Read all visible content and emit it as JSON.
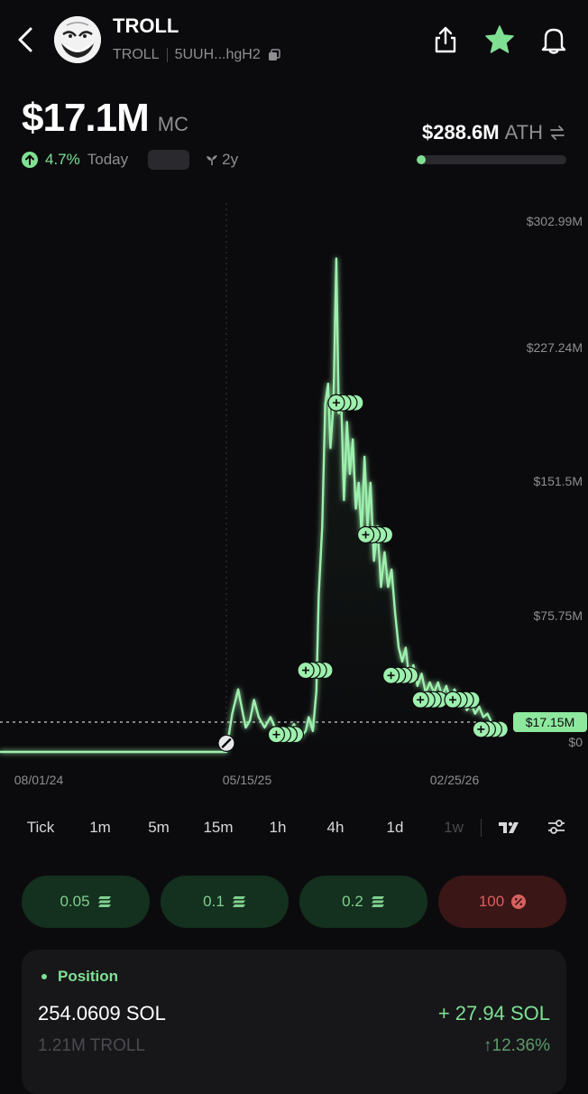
{
  "header": {
    "title": "TROLL",
    "symbol": "TROLL",
    "address": "5UUH...hgH2"
  },
  "market_cap": {
    "value": "$17.1M",
    "label": "MC",
    "change_pct": "4.7%",
    "change_period": "Today",
    "age": "2y",
    "ath_value": "$288.6M",
    "ath_label": "ATH",
    "ath_progress": 0.06
  },
  "chart_data": {
    "type": "line",
    "x_ticks": [
      "08/01/24",
      "05/15/25",
      "02/25/26"
    ],
    "y_ticks": [
      "$302.99M",
      "$227.24M",
      "$151.5M",
      "$75.75M",
      "$0"
    ],
    "current_label": "$17.15M",
    "ylim": [
      0,
      302.99
    ],
    "series": [
      {
        "values": [
          [
            0.0,
            0.0
          ],
          [
            0.385,
            0.0
          ],
          [
            0.387,
            5.0
          ],
          [
            0.395,
            22.0
          ],
          [
            0.405,
            36.0
          ],
          [
            0.412,
            24.0
          ],
          [
            0.418,
            14.0
          ],
          [
            0.425,
            18.0
          ],
          [
            0.432,
            30.0
          ],
          [
            0.44,
            20.0
          ],
          [
            0.45,
            14.0
          ],
          [
            0.46,
            20.0
          ],
          [
            0.47,
            12.0
          ],
          [
            0.48,
            8.0
          ],
          [
            0.49,
            10.0
          ],
          [
            0.5,
            16.0
          ],
          [
            0.51,
            8.0
          ],
          [
            0.52,
            12.0
          ],
          [
            0.525,
            20.0
          ],
          [
            0.532,
            12.0
          ],
          [
            0.538,
            35.0
          ],
          [
            0.542,
            90.0
          ],
          [
            0.548,
            130.0
          ],
          [
            0.553,
            200.0
          ],
          [
            0.558,
            212.0
          ],
          [
            0.562,
            175.0
          ],
          [
            0.567,
            200.0
          ],
          [
            0.572,
            284.0
          ],
          [
            0.576,
            195.0
          ],
          [
            0.58,
            205.0
          ],
          [
            0.585,
            145.0
          ],
          [
            0.59,
            190.0
          ],
          [
            0.595,
            160.0
          ],
          [
            0.6,
            180.0
          ],
          [
            0.605,
            140.0
          ],
          [
            0.61,
            155.0
          ],
          [
            0.615,
            125.0
          ],
          [
            0.62,
            170.0
          ],
          [
            0.625,
            130.0
          ],
          [
            0.63,
            155.0
          ],
          [
            0.636,
            110.0
          ],
          [
            0.642,
            130.0
          ],
          [
            0.648,
            95.0
          ],
          [
            0.654,
            115.0
          ],
          [
            0.66,
            95.0
          ],
          [
            0.666,
            105.0
          ],
          [
            0.672,
            80.0
          ],
          [
            0.678,
            60.0
          ],
          [
            0.684,
            52.0
          ],
          [
            0.69,
            60.0
          ],
          [
            0.696,
            42.0
          ],
          [
            0.703,
            50.0
          ],
          [
            0.71,
            38.0
          ],
          [
            0.717,
            45.0
          ],
          [
            0.724,
            34.0
          ],
          [
            0.731,
            40.0
          ],
          [
            0.738,
            34.0
          ],
          [
            0.745,
            40.0
          ],
          [
            0.752,
            32.0
          ],
          [
            0.759,
            38.0
          ],
          [
            0.766,
            30.0
          ],
          [
            0.773,
            36.0
          ],
          [
            0.78,
            28.0
          ],
          [
            0.787,
            32.0
          ],
          [
            0.794,
            24.0
          ],
          [
            0.801,
            28.0
          ],
          [
            0.808,
            22.0
          ],
          [
            0.815,
            26.0
          ],
          [
            0.822,
            20.0
          ],
          [
            0.829,
            22.0
          ],
          [
            0.836,
            17.15
          ]
        ]
      }
    ]
  },
  "trade_markers": [
    {
      "type": "buy",
      "x": 0.572,
      "y": 201.0
    },
    {
      "type": "buy",
      "x": 0.622,
      "y": 125.0
    },
    {
      "type": "buy",
      "x": 0.52,
      "y": 47.0
    },
    {
      "type": "buy",
      "x": 0.665,
      "y": 44.0
    },
    {
      "type": "buy",
      "x": 0.715,
      "y": 30.0
    },
    {
      "type": "buy",
      "x": 0.77,
      "y": 30.0
    },
    {
      "type": "buy",
      "x": 0.818,
      "y": 13.0
    },
    {
      "type": "buy",
      "x": 0.47,
      "y": 10.0
    },
    {
      "type": "sell",
      "x": 0.385,
      "y": 5.0
    }
  ],
  "intervals": [
    "Tick",
    "1m",
    "5m",
    "15m",
    "1h",
    "4h",
    "1d",
    "1w"
  ],
  "buy_buttons": [
    "0.05",
    "0.1",
    "0.2"
  ],
  "sell_button": "100",
  "position": {
    "title": "Position",
    "sol_amount": "254.0609 SOL",
    "token_amount": "1.21M TROLL",
    "pnl_sol": "+ 27.94 SOL",
    "pnl_pct": "↑12.36%"
  },
  "colors": {
    "accent": "#7fe093",
    "background": "#0b0b0d",
    "sell": "#d86060"
  }
}
